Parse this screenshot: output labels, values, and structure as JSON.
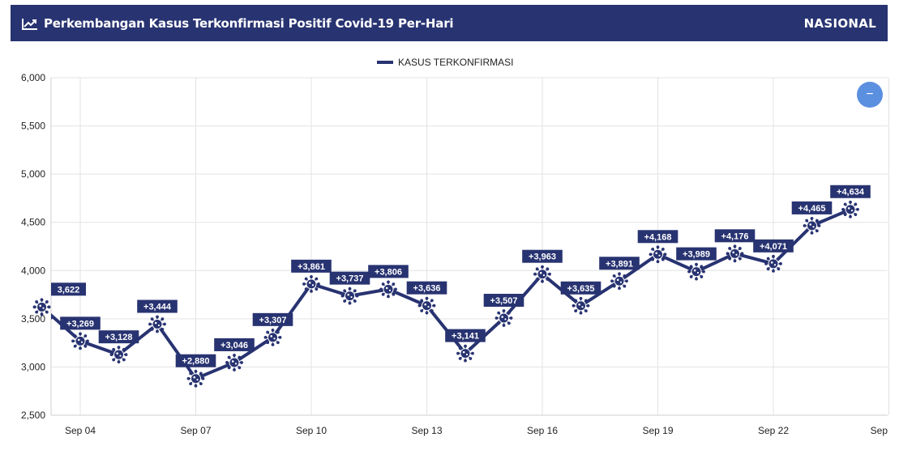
{
  "header": {
    "title": "Perkembangan Kasus Terkonfirmasi Positif Covid-19 Per-Hari",
    "scope": "NASIONAL",
    "icon": "line-chart-icon"
  },
  "controls": {
    "collapse_label": "−"
  },
  "colors": {
    "header_bg": "#283371",
    "series": "#283371",
    "button": "#5b8fe0"
  },
  "chart_data": {
    "type": "line",
    "series": [
      {
        "name": "KASUS TERKONFIRMASI",
        "x": [
          "Sep 03",
          "Sep 04",
          "Sep 05",
          "Sep 06",
          "Sep 07",
          "Sep 08",
          "Sep 09",
          "Sep 10",
          "Sep 11",
          "Sep 12",
          "Sep 13",
          "Sep 14",
          "Sep 15",
          "Sep 16",
          "Sep 17",
          "Sep 18",
          "Sep 19",
          "Sep 20",
          "Sep 21",
          "Sep 22",
          "Sep 23",
          "Sep 24"
        ],
        "values": [
          3622,
          3269,
          3128,
          3444,
          2880,
          3046,
          3307,
          3861,
          3737,
          3806,
          3636,
          3141,
          3507,
          3963,
          3635,
          3891,
          4168,
          3989,
          4176,
          4071,
          4465,
          4634
        ],
        "labels": [
          "3,622",
          "+3,269",
          "+3,128",
          "+3,444",
          "+2,880",
          "+3,046",
          "+3,307",
          "+3,861",
          "+3,737",
          "+3,806",
          "+3,636",
          "+3,141",
          "+3,507",
          "+3,963",
          "+3,635",
          "+3,891",
          "+4,168",
          "+3,989",
          "+4,176",
          "+4,071",
          "+4,465",
          "+4,634"
        ]
      }
    ],
    "x_ticks": [
      "Sep 04",
      "Sep 07",
      "Sep 10",
      "Sep 13",
      "Sep 16",
      "Sep 19",
      "Sep 22",
      "Sep"
    ],
    "y_ticks": [
      "2,500",
      "3,000",
      "3,500",
      "4,000",
      "4,500",
      "5,000",
      "5,500",
      "6,000"
    ],
    "ylim": [
      2500,
      6000
    ],
    "grid": true,
    "legend_position": "top-center"
  }
}
